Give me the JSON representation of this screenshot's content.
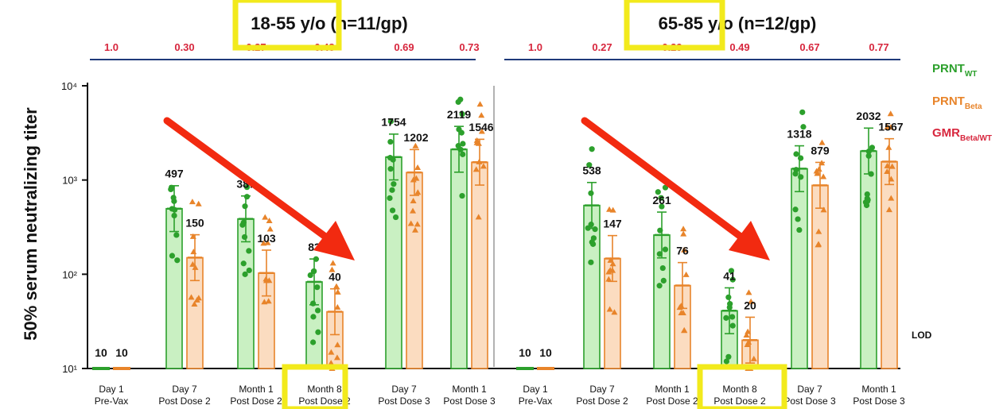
{
  "chart_data": {
    "type": "bar",
    "ylabel": "50% serum neutralizing titer",
    "yscale": "log",
    "ylim": [
      10,
      10000
    ],
    "yticks": [
      "10¹",
      "10²",
      "10³",
      "10⁴"
    ],
    "legend": [
      {
        "name": "PRNT",
        "sub": "WT",
        "color": "#2ca02c"
      },
      {
        "name": "PRNT",
        "sub": "Beta",
        "color": "#e8842a"
      },
      {
        "name": "GMR",
        "sub": "Beta/WT",
        "color": "#d7263d"
      }
    ],
    "lod_label": "LOD",
    "colors": {
      "wt": "#2ca02c",
      "beta": "#e8842a",
      "gmr": "#d7263d",
      "rule": "#1f3a7a",
      "highlight": "#f2ea1c",
      "arrow": "#f22a10"
    },
    "panels": [
      {
        "title": "18-55 y/o (n=11/gp)",
        "categories": [
          {
            "line1": "Day 1",
            "line2": "Pre-Vax"
          },
          {
            "line1": "Day 7",
            "line2": "Post Dose 2"
          },
          {
            "line1": "Month 1",
            "line2": "Post Dose 2"
          },
          {
            "line1": "Month 8",
            "line2": "Post Dose 2"
          },
          {
            "line1": "Day 7",
            "line2": "Post Dose 3"
          },
          {
            "line1": "Month 1",
            "line2": "Post Dose 3"
          }
        ],
        "gmr": [
          "1.0",
          "0.30",
          "0.27",
          "0.48",
          "0.69",
          "0.73"
        ],
        "series": [
          {
            "name": "PRNT WT",
            "values": [
              10,
              497,
              387,
              83,
              1754,
              2119
            ],
            "labels": [
              "10",
              "497",
              "387",
              "83",
              "1754",
              "2119"
            ]
          },
          {
            "name": "PRNT Beta",
            "values": [
              10,
              150,
              103,
              40,
              1202,
              1546
            ],
            "labels": [
              "10",
              "150",
              "103",
              "40",
              "1202",
              "1546"
            ]
          }
        ]
      },
      {
        "title": "65-85 y/o (n=12/gp)",
        "categories": [
          {
            "line1": "Day 1",
            "line2": "Pre-Vax"
          },
          {
            "line1": "Day 7",
            "line2": "Post Dose 2"
          },
          {
            "line1": "Month 1",
            "line2": "Post Dose 2"
          },
          {
            "line1": "Month 8",
            "line2": "Post Dose 2"
          },
          {
            "line1": "Day 7",
            "line2": "Post Dose 3"
          },
          {
            "line1": "Month 1",
            "line2": "Post Dose 3"
          }
        ],
        "gmr": [
          "1.0",
          "0.27",
          "0.29",
          "0.49",
          "0.67",
          "0.77"
        ],
        "series": [
          {
            "name": "PRNT WT",
            "values": [
              10,
              538,
              261,
              41,
              1318,
              2032
            ],
            "labels": [
              "10",
              "538",
              "261",
              "41",
              "1318",
              "2032"
            ]
          },
          {
            "name": "PRNT Beta",
            "values": [
              10,
              147,
              76,
              20,
              879,
              1567
            ],
            "labels": [
              "10",
              "147",
              "76",
              "20",
              "879",
              "1567"
            ]
          }
        ]
      }
    ]
  }
}
